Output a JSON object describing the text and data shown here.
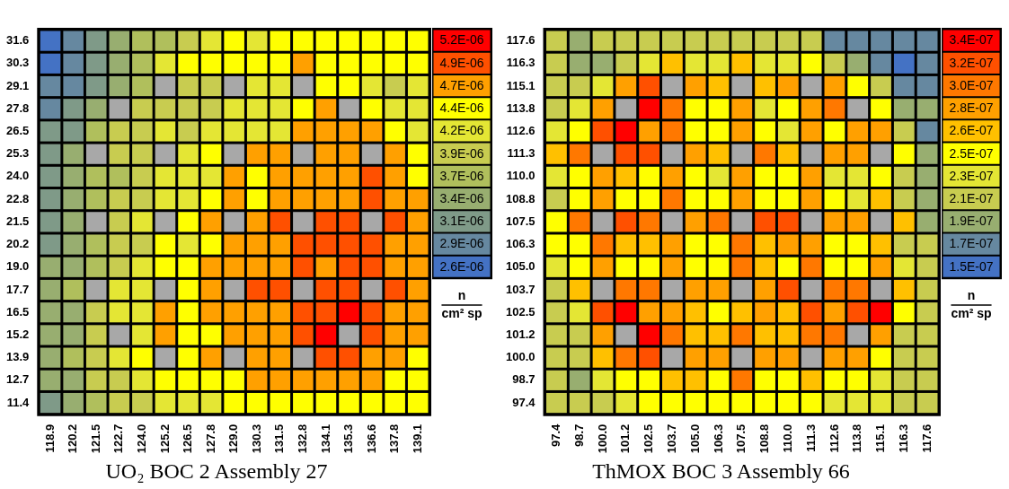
{
  "chart_data": [
    {
      "type": "heatmap",
      "title": "UO₂ BOC 2 Assembly 27",
      "categories": [
        "118.9",
        "120.2",
        "121.5",
        "122.7",
        "124.0",
        "125.2",
        "126.5",
        "127.8",
        "129.0",
        "130.3",
        "131.5",
        "132.8",
        "134.1",
        "135.3",
        "136.6",
        "137.8",
        "139.1"
      ],
      "y_categories": [
        "31.6",
        "30.3",
        "29.1",
        "27.8",
        "26.5",
        "25.3",
        "24.0",
        "22.8",
        "21.5",
        "20.2",
        "19.0",
        "17.7",
        "16.5",
        "15.2",
        "13.9",
        "12.7",
        "11.4"
      ],
      "cells": [
        [
          2.6e-06,
          2.9e-06,
          3.1e-06,
          3.4e-06,
          3.7e-06,
          3.7e-06,
          3.9e-06,
          4.2e-06,
          4.4e-06,
          4.2e-06,
          4.4e-06,
          4.4e-06,
          4.4e-06,
          4.4e-06,
          4.4e-06,
          4.4e-06,
          4.4e-06
        ],
        [
          2.6e-06,
          2.9e-06,
          3.1e-06,
          3.4e-06,
          3.7e-06,
          4.2e-06,
          4.4e-06,
          4.4e-06,
          4.4e-06,
          4.4e-06,
          4.4e-06,
          4.7e-06,
          4.4e-06,
          4.4e-06,
          4.4e-06,
          4.4e-06,
          4.4e-06
        ],
        [
          2.9e-06,
          2.9e-06,
          3.1e-06,
          3.4e-06,
          3.7e-06,
          null,
          3.9e-06,
          3.9e-06,
          null,
          4.2e-06,
          4.2e-06,
          null,
          4.4e-06,
          4.4e-06,
          4.2e-06,
          3.9e-06,
          4.2e-06
        ],
        [
          2.9e-06,
          3.1e-06,
          3.4e-06,
          null,
          3.9e-06,
          3.9e-06,
          3.9e-06,
          3.9e-06,
          4.2e-06,
          4.2e-06,
          4.2e-06,
          4.4e-06,
          4.7e-06,
          null,
          4.4e-06,
          4.2e-06,
          4.2e-06
        ],
        [
          3.1e-06,
          3.1e-06,
          3.7e-06,
          3.9e-06,
          3.9e-06,
          4.2e-06,
          3.9e-06,
          4.2e-06,
          4.2e-06,
          4.2e-06,
          4.2e-06,
          4.7e-06,
          4.7e-06,
          4.7e-06,
          4.7e-06,
          4.4e-06,
          4.2e-06
        ],
        [
          3.1e-06,
          3.4e-06,
          null,
          3.9e-06,
          3.9e-06,
          null,
          4.2e-06,
          4.4e-06,
          null,
          4.7e-06,
          4.7e-06,
          null,
          4.7e-06,
          4.7e-06,
          null,
          4.7e-06,
          4.4e-06
        ],
        [
          3.1e-06,
          3.4e-06,
          3.7e-06,
          3.7e-06,
          3.9e-06,
          4.2e-06,
          4.2e-06,
          4.2e-06,
          4.7e-06,
          4.4e-06,
          4.7e-06,
          4.7e-06,
          4.7e-06,
          4.7e-06,
          4.9e-06,
          4.7e-06,
          4.4e-06
        ],
        [
          3.1e-06,
          3.4e-06,
          3.7e-06,
          3.9e-06,
          3.9e-06,
          4.2e-06,
          4.2e-06,
          4.4e-06,
          4.7e-06,
          4.4e-06,
          4.7e-06,
          4.7e-06,
          4.7e-06,
          4.7e-06,
          4.9e-06,
          4.7e-06,
          4.7e-06
        ],
        [
          3.1e-06,
          3.4e-06,
          null,
          3.9e-06,
          4.2e-06,
          null,
          4.4e-06,
          4.7e-06,
          null,
          4.7e-06,
          4.9e-06,
          null,
          4.9e-06,
          4.9e-06,
          null,
          4.9e-06,
          4.7e-06
        ],
        [
          3.1e-06,
          3.4e-06,
          3.7e-06,
          3.9e-06,
          3.9e-06,
          4.4e-06,
          4.2e-06,
          4.4e-06,
          4.7e-06,
          4.7e-06,
          4.7e-06,
          4.9e-06,
          4.9e-06,
          4.9e-06,
          4.9e-06,
          4.7e-06,
          4.7e-06
        ],
        [
          3.4e-06,
          3.4e-06,
          3.7e-06,
          3.9e-06,
          4.2e-06,
          4.4e-06,
          4.4e-06,
          4.7e-06,
          4.7e-06,
          4.7e-06,
          4.7e-06,
          4.9e-06,
          4.7e-06,
          4.9e-06,
          4.9e-06,
          4.7e-06,
          4.7e-06
        ],
        [
          3.4e-06,
          3.7e-06,
          null,
          4.2e-06,
          4.2e-06,
          null,
          4.4e-06,
          4.7e-06,
          null,
          4.9e-06,
          4.9e-06,
          null,
          4.9e-06,
          4.9e-06,
          null,
          4.9e-06,
          4.7e-06
        ],
        [
          3.4e-06,
          3.4e-06,
          3.9e-06,
          4.2e-06,
          4.2e-06,
          4.7e-06,
          4.4e-06,
          4.7e-06,
          4.7e-06,
          4.7e-06,
          4.7e-06,
          4.9e-06,
          4.9e-06,
          5.2e-06,
          4.9e-06,
          4.7e-06,
          4.7e-06
        ],
        [
          3.4e-06,
          3.4e-06,
          3.9e-06,
          null,
          4.2e-06,
          4.7e-06,
          4.4e-06,
          4.4e-06,
          4.7e-06,
          4.7e-06,
          4.7e-06,
          4.9e-06,
          5.2e-06,
          null,
          4.9e-06,
          4.7e-06,
          4.7e-06
        ],
        [
          3.4e-06,
          3.7e-06,
          3.9e-06,
          4.2e-06,
          4.4e-06,
          null,
          4.4e-06,
          4.7e-06,
          null,
          4.7e-06,
          4.7e-06,
          null,
          4.9e-06,
          4.9e-06,
          4.7e-06,
          4.7e-06,
          4.4e-06
        ],
        [
          3.4e-06,
          3.4e-06,
          3.9e-06,
          3.9e-06,
          4.2e-06,
          4.4e-06,
          4.4e-06,
          4.4e-06,
          4.4e-06,
          4.7e-06,
          4.7e-06,
          4.7e-06,
          4.7e-06,
          4.7e-06,
          4.7e-06,
          4.4e-06,
          4.4e-06
        ],
        [
          3.1e-06,
          3.4e-06,
          3.7e-06,
          3.9e-06,
          3.9e-06,
          4.2e-06,
          4.2e-06,
          4.2e-06,
          4.4e-06,
          4.4e-06,
          4.4e-06,
          4.4e-06,
          4.4e-06,
          4.4e-06,
          4.4e-06,
          4.4e-06,
          4.4e-06
        ]
      ],
      "cticks": [
        {
          "value": 5.2e-06,
          "label": "5.2E-06"
        },
        {
          "value": 4.9e-06,
          "label": "4.9E-06"
        },
        {
          "value": 4.7e-06,
          "label": "4.7E-06"
        },
        {
          "value": 4.4e-06,
          "label": "4.4E-06"
        },
        {
          "value": 4.2e-06,
          "label": "4.2E-06"
        },
        {
          "value": 3.9e-06,
          "label": "3.9E-06"
        },
        {
          "value": 3.7e-06,
          "label": "3.7E-06"
        },
        {
          "value": 3.4e-06,
          "label": "3.4E-06"
        },
        {
          "value": 3.1e-06,
          "label": "3.1E-06"
        },
        {
          "value": 2.9e-06,
          "label": "2.9E-06"
        },
        {
          "value": 2.6e-06,
          "label": "2.6E-06"
        }
      ],
      "colors": [
        "#ff0000",
        "#ff5000",
        "#ffa000",
        "#ffff00",
        "#e4e634",
        "#c8cc50",
        "#b0bf5c",
        "#98ae70",
        "#7f9a88",
        "#6688a0",
        "#4472c4"
      ],
      "clabel": "n\ncm² sp"
    },
    {
      "type": "heatmap",
      "title": "ThMOX BOC 3 Assembly 66",
      "categories": [
        "97.4",
        "98.7",
        "100.0",
        "101.2",
        "102.5",
        "103.7",
        "105.0",
        "106.3",
        "107.5",
        "108.8",
        "110.0",
        "111.3",
        "112.6",
        "113.8",
        "115.1",
        "116.3",
        "117.6"
      ],
      "y_categories": [
        "117.6",
        "116.3",
        "115.1",
        "113.8",
        "112.6",
        "111.3",
        "110.0",
        "108.8",
        "107.5",
        "106.3",
        "105.0",
        "103.7",
        "102.5",
        "101.2",
        "100.0",
        "98.7",
        "97.4"
      ],
      "cells": [
        [
          2.1e-07,
          1.9e-07,
          2.1e-07,
          2.1e-07,
          2.1e-07,
          2.1e-07,
          2.1e-07,
          2.1e-07,
          2.1e-07,
          2.1e-07,
          2.1e-07,
          2.1e-07,
          1.7e-07,
          1.7e-07,
          1.7e-07,
          1.7e-07,
          1.7e-07
        ],
        [
          2.1e-07,
          1.9e-07,
          1.9e-07,
          2.1e-07,
          2.3e-07,
          2.6e-07,
          2.3e-07,
          2.3e-07,
          2.6e-07,
          2.3e-07,
          2.3e-07,
          2.5e-07,
          2.1e-07,
          1.9e-07,
          1.7e-07,
          1.5e-07,
          1.7e-07
        ],
        [
          2.1e-07,
          2.1e-07,
          2.3e-07,
          2.8e-07,
          3.2e-07,
          null,
          2.8e-07,
          2.6e-07,
          null,
          2.6e-07,
          2.8e-07,
          null,
          2.8e-07,
          2.5e-07,
          2.1e-07,
          1.7e-07,
          1.7e-07
        ],
        [
          2.1e-07,
          2.3e-07,
          2.8e-07,
          null,
          3.4e-07,
          3e-07,
          2.5e-07,
          2.5e-07,
          2.8e-07,
          2.3e-07,
          2.5e-07,
          2.8e-07,
          3e-07,
          null,
          2.5e-07,
          1.9e-07,
          1.9e-07
        ],
        [
          2.3e-07,
          2.5e-07,
          3.2e-07,
          3.4e-07,
          2.8e-07,
          3e-07,
          2.5e-07,
          2.5e-07,
          2.8e-07,
          2.5e-07,
          2.3e-07,
          2.8e-07,
          2.5e-07,
          2.8e-07,
          2.8e-07,
          2.1e-07,
          1.7e-07
        ],
        [
          2.6e-07,
          3e-07,
          null,
          3.2e-07,
          3.2e-07,
          null,
          2.8e-07,
          2.6e-07,
          null,
          3e-07,
          2.6e-07,
          null,
          2.8e-07,
          2.8e-07,
          null,
          2.5e-07,
          1.9e-07
        ],
        [
          2.3e-07,
          2.5e-07,
          2.8e-07,
          2.6e-07,
          2.5e-07,
          2.8e-07,
          2.5e-07,
          2.3e-07,
          2.8e-07,
          2.5e-07,
          2.5e-07,
          2.8e-07,
          2.3e-07,
          2.3e-07,
          2.5e-07,
          2.1e-07,
          1.9e-07
        ],
        [
          2.1e-07,
          2.5e-07,
          2.8e-07,
          2.5e-07,
          2.5e-07,
          3e-07,
          2.5e-07,
          2.5e-07,
          2.8e-07,
          2.5e-07,
          2.5e-07,
          2.8e-07,
          2.5e-07,
          2.3e-07,
          2.6e-07,
          2.1e-07,
          1.9e-07
        ],
        [
          2.5e-07,
          3e-07,
          null,
          3.2e-07,
          3e-07,
          null,
          2.8e-07,
          3e-07,
          null,
          3.2e-07,
          3.2e-07,
          null,
          2.8e-07,
          2.8e-07,
          null,
          2.6e-07,
          1.9e-07
        ],
        [
          2.5e-07,
          2.5e-07,
          3e-07,
          2.6e-07,
          2.6e-07,
          2.8e-07,
          2.5e-07,
          2.5e-07,
          3e-07,
          2.6e-07,
          2.8e-07,
          2.8e-07,
          2.5e-07,
          2.5e-07,
          2.6e-07,
          2.1e-07,
          2.1e-07
        ],
        [
          2.3e-07,
          2.5e-07,
          2.8e-07,
          2.5e-07,
          2.5e-07,
          2.8e-07,
          2.5e-07,
          2.5e-07,
          3e-07,
          2.6e-07,
          2.5e-07,
          3e-07,
          2.5e-07,
          2.5e-07,
          2.8e-07,
          2.3e-07,
          2.1e-07
        ],
        [
          2.1e-07,
          2.6e-07,
          null,
          3e-07,
          3e-07,
          null,
          2.8e-07,
          2.8e-07,
          null,
          2.8e-07,
          3.2e-07,
          null,
          3e-07,
          3e-07,
          null,
          2.6e-07,
          2.1e-07
        ],
        [
          2.1e-07,
          2.3e-07,
          3.2e-07,
          3.4e-07,
          2.8e-07,
          2.8e-07,
          2.6e-07,
          2.5e-07,
          2.6e-07,
          2.8e-07,
          2.6e-07,
          3.2e-07,
          2.8e-07,
          3.2e-07,
          3.4e-07,
          2.5e-07,
          2.1e-07
        ],
        [
          2.1e-07,
          2.1e-07,
          2.8e-07,
          null,
          3.4e-07,
          3e-07,
          2.6e-07,
          2.6e-07,
          3e-07,
          2.6e-07,
          2.6e-07,
          3e-07,
          3e-07,
          null,
          2.8e-07,
          2.1e-07,
          2.1e-07
        ],
        [
          2.1e-07,
          2.1e-07,
          2.6e-07,
          3e-07,
          3.2e-07,
          null,
          2.8e-07,
          2.8e-07,
          null,
          2.8e-07,
          2.8e-07,
          null,
          2.8e-07,
          2.8e-07,
          2.5e-07,
          2.1e-07,
          2.1e-07
        ],
        [
          2.1e-07,
          1.9e-07,
          2.3e-07,
          2.5e-07,
          2.5e-07,
          2.6e-07,
          2.6e-07,
          2.5e-07,
          3e-07,
          2.5e-07,
          2.5e-07,
          2.6e-07,
          2.5e-07,
          2.5e-07,
          2.3e-07,
          2.1e-07,
          2.1e-07
        ],
        [
          2.1e-07,
          2.1e-07,
          2.1e-07,
          2.3e-07,
          2.5e-07,
          2.5e-07,
          2.5e-07,
          2.5e-07,
          2.5e-07,
          2.5e-07,
          2.5e-07,
          2.5e-07,
          2.3e-07,
          2.3e-07,
          2.3e-07,
          2.1e-07,
          2.1e-07
        ]
      ],
      "cticks": [
        {
          "value": 3.4e-07,
          "label": "3.4E-07"
        },
        {
          "value": 3.2e-07,
          "label": "3.2E-07"
        },
        {
          "value": 3e-07,
          "label": "3.0E-07"
        },
        {
          "value": 2.8e-07,
          "label": "2.8E-07"
        },
        {
          "value": 2.6e-07,
          "label": "2.6E-07"
        },
        {
          "value": 2.5e-07,
          "label": "2.5E-07"
        },
        {
          "value": 2.3e-07,
          "label": "2.3E-07"
        },
        {
          "value": 2.1e-07,
          "label": "2.1E-07"
        },
        {
          "value": 1.9e-07,
          "label": "1.9E-07"
        },
        {
          "value": 1.7e-07,
          "label": "1.7E-07"
        },
        {
          "value": 1.5e-07,
          "label": "1.5E-07"
        }
      ],
      "colors": [
        "#ff0000",
        "#ff5000",
        "#ff7800",
        "#ffa000",
        "#ffc000",
        "#ffff00",
        "#e4e634",
        "#c8cc50",
        "#98ae70",
        "#6688a0",
        "#4472c4"
      ],
      "clabel": "n\ncm² sp"
    }
  ]
}
